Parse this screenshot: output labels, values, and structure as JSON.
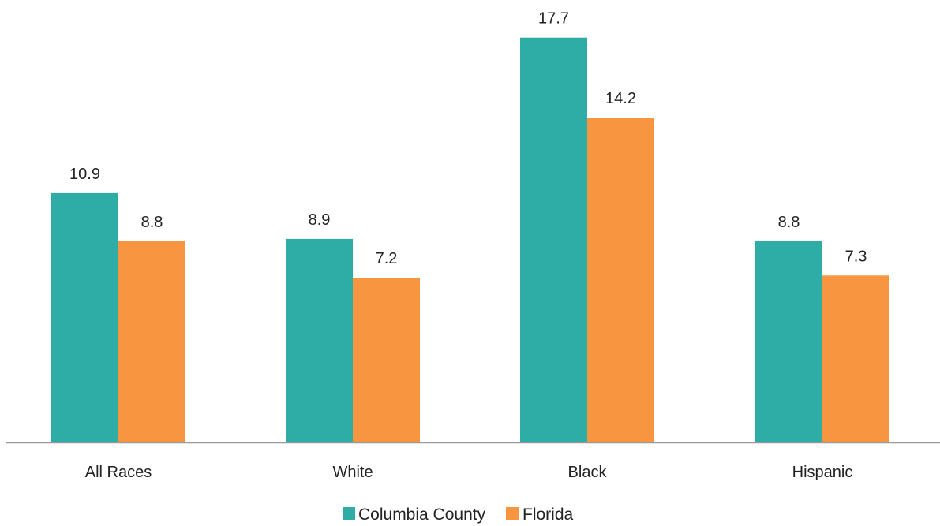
{
  "chart_data": {
    "type": "bar",
    "categories": [
      "All Races",
      "White",
      "Black",
      "Hispanic"
    ],
    "series": [
      {
        "name": "Columbia County",
        "color": "#2ead a6",
        "values": [
          10.9,
          8.9,
          17.7,
          8.8
        ],
        "labels": [
          "10.9",
          "8.9",
          "17.7",
          "8.8"
        ]
      },
      {
        "name": "Florida",
        "color": "#f79541",
        "values": [
          8.8,
          7.2,
          14.2,
          7.3
        ],
        "labels": [
          "8.8",
          "7.2",
          "14.2",
          "7.3"
        ]
      }
    ],
    "ylim": [
      0,
      18.5
    ],
    "grid": false,
    "legend_position": "bottom",
    "axis_color": "#999999"
  }
}
